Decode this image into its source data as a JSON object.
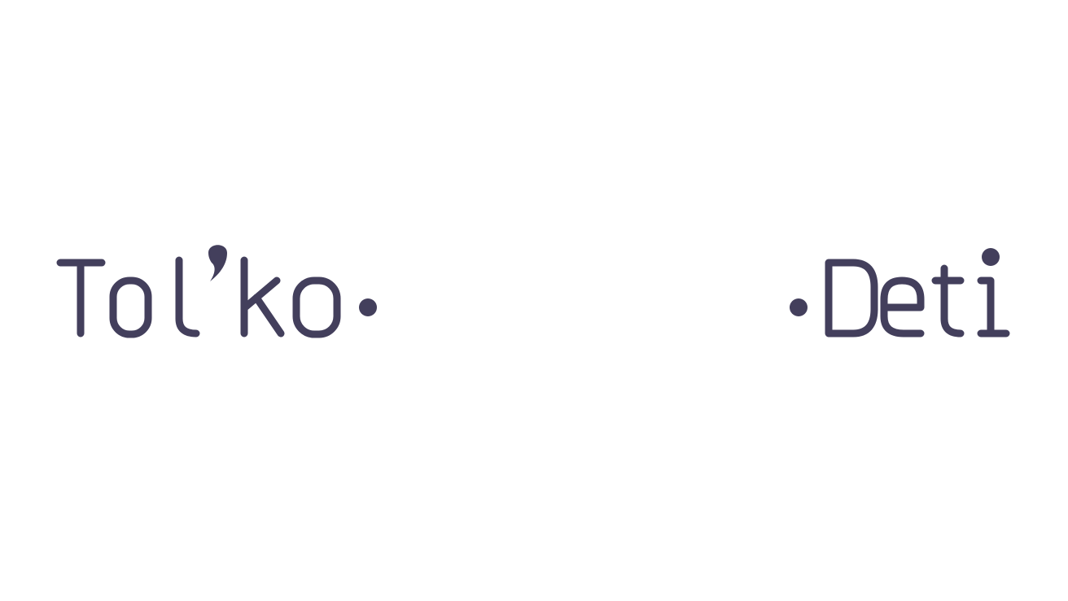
{
  "logo": {
    "left_word": "Tol'ko",
    "right_word": "Deti",
    "text_color": "#433f5c"
  }
}
